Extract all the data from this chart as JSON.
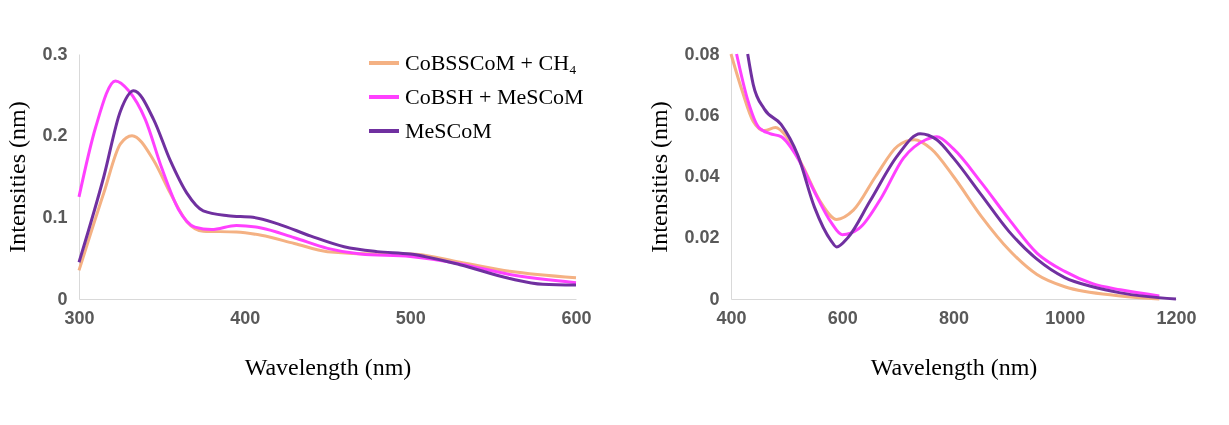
{
  "chart_data": [
    {
      "type": "line",
      "xlabel": "Wavelength (nm)",
      "ylabel": "Intensities (nm)",
      "xlim": [
        300,
        600
      ],
      "xticks": [
        300,
        400,
        500,
        600
      ],
      "ylim": [
        0,
        0.3
      ],
      "yticks": [
        0,
        0.1,
        0.2,
        0.3
      ],
      "grid": false,
      "legend": "top right",
      "marker": "none",
      "line_style": "solid",
      "series": [
        {
          "name": "CoBSSCoM + CH₄",
          "color": "#f4b183",
          "x": [
            300,
            315,
            325,
            332,
            345,
            355,
            365,
            375,
            395,
            410,
            430,
            450,
            480,
            500,
            530,
            560,
            600
          ],
          "values": [
            0.035,
            0.13,
            0.19,
            0.2,
            0.17,
            0.13,
            0.095,
            0.083,
            0.082,
            0.078,
            0.068,
            0.058,
            0.055,
            0.055,
            0.045,
            0.034,
            0.026
          ]
        },
        {
          "name": "CoBSH + MeSCoM",
          "color": "#ff40ff",
          "x": [
            300,
            310,
            322,
            330,
            340,
            350,
            360,
            370,
            380,
            395,
            410,
            430,
            450,
            470,
            500,
            530,
            560,
            600
          ],
          "values": [
            0.125,
            0.21,
            0.267,
            0.255,
            0.22,
            0.16,
            0.11,
            0.088,
            0.085,
            0.09,
            0.087,
            0.075,
            0.062,
            0.055,
            0.052,
            0.043,
            0.03,
            0.02
          ]
        },
        {
          "name": "MeSCoM",
          "color": "#7030a0",
          "x": [
            300,
            315,
            325,
            333,
            345,
            355,
            365,
            375,
            390,
            405,
            420,
            440,
            460,
            480,
            500,
            530,
            560,
            580,
            600
          ],
          "values": [
            0.045,
            0.15,
            0.23,
            0.255,
            0.22,
            0.17,
            0.13,
            0.108,
            0.102,
            0.1,
            0.092,
            0.077,
            0.064,
            0.058,
            0.055,
            0.042,
            0.025,
            0.018,
            0.017
          ]
        }
      ]
    },
    {
      "type": "line",
      "xlabel": "Wavelength (nm)",
      "ylabel": "Intensities (nm)",
      "xlim": [
        400,
        1200
      ],
      "xticks": [
        400,
        600,
        800,
        1000,
        1200
      ],
      "ylim": [
        0,
        0.08
      ],
      "yticks": [
        0,
        0.02,
        0.04,
        0.06,
        0.08
      ],
      "grid": false,
      "marker": "none",
      "line_style": "solid",
      "series": [
        {
          "color": "#f4b183",
          "x": [
            400,
            420,
            440,
            460,
            480,
            500,
            530,
            560,
            590,
            620,
            660,
            700,
            730,
            760,
            800,
            850,
            900,
            950,
            1000,
            1100,
            1170
          ],
          "values": [
            0.08,
            0.068,
            0.058,
            0.055,
            0.056,
            0.053,
            0.043,
            0.032,
            0.026,
            0.029,
            0.04,
            0.05,
            0.052,
            0.049,
            0.04,
            0.027,
            0.016,
            0.008,
            0.004,
            0.001,
            0
          ]
        },
        {
          "color": "#ff40ff",
          "x": [
            410,
            430,
            450,
            470,
            490,
            520,
            550,
            580,
            600,
            630,
            670,
            710,
            750,
            770,
            800,
            850,
            900,
            950,
            1000,
            1050,
            1100,
            1170
          ],
          "values": [
            0.08,
            0.065,
            0.056,
            0.054,
            0.053,
            0.046,
            0.035,
            0.025,
            0.021,
            0.023,
            0.033,
            0.046,
            0.052,
            0.053,
            0.049,
            0.038,
            0.026,
            0.015,
            0.009,
            0.005,
            0.003,
            0.001
          ]
        },
        {
          "color": "#7030a0",
          "x": [
            430,
            440,
            460,
            490,
            520,
            550,
            580,
            590,
            610,
            650,
            700,
            740,
            770,
            800,
            850,
            900,
            950,
            1000,
            1050,
            1100,
            1200
          ],
          "values": [
            0.08,
            0.07,
            0.062,
            0.057,
            0.047,
            0.03,
            0.019,
            0.017,
            0.02,
            0.032,
            0.047,
            0.054,
            0.052,
            0.046,
            0.034,
            0.022,
            0.013,
            0.007,
            0.004,
            0.002,
            0
          ]
        }
      ]
    }
  ]
}
